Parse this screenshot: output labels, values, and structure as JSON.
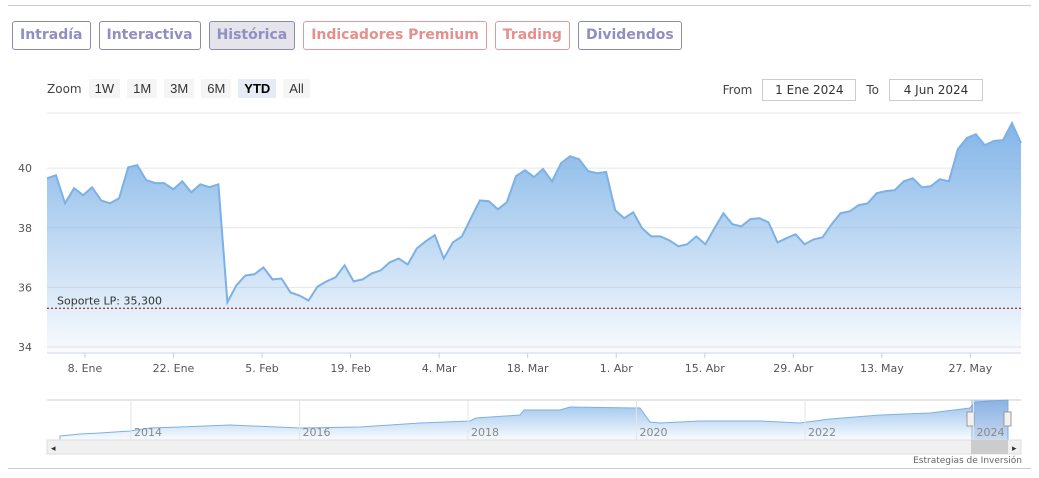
{
  "tabs": [
    {
      "label": "Intradía"
    },
    {
      "label": "Interactiva"
    },
    {
      "label": "Histórica",
      "active": true
    },
    {
      "label": "Indicadores Premium"
    },
    {
      "label": "Trading"
    },
    {
      "label": "Dividendos"
    }
  ],
  "zoom": {
    "label": "Zoom",
    "buttons": [
      "1W",
      "1M",
      "3M",
      "6M",
      "YTD",
      "All"
    ],
    "selected": "YTD"
  },
  "range": {
    "from_label": "From",
    "from_value": "1 Ene 2024",
    "to_label": "To",
    "to_value": "4 Jun 2024"
  },
  "credit": "Estrategias de Inversión",
  "colors": {
    "line": "#7cb1e6",
    "tab": "#8f8fc4",
    "tab_red": "#e58f8f",
    "support": "#8b0000"
  },
  "chart_data": {
    "type": "area",
    "ylim": [
      33.8,
      41.85
    ],
    "yticks": [
      34,
      36,
      38,
      40
    ],
    "x_day_range": [
      2,
      156
    ],
    "xticks": [
      {
        "label": "8. Ene",
        "day": 8
      },
      {
        "label": "22. Ene",
        "day": 22
      },
      {
        "label": "5. Feb",
        "day": 36
      },
      {
        "label": "19. Feb",
        "day": 50
      },
      {
        "label": "4. Mar",
        "day": 64
      },
      {
        "label": "18. Mar",
        "day": 78
      },
      {
        "label": "1. Abr",
        "day": 92
      },
      {
        "label": "15. Abr",
        "day": 106
      },
      {
        "label": "29. Abr",
        "day": 120
      },
      {
        "label": "13. May",
        "day": 134
      },
      {
        "label": "27. May",
        "day": 148
      }
    ],
    "values": [
      39.66,
      39.76,
      38.82,
      39.33,
      39.09,
      39.36,
      38.92,
      38.82,
      38.99,
      40.03,
      40.1,
      39.6,
      39.5,
      39.5,
      39.29,
      39.56,
      39.19,
      39.46,
      39.36,
      39.46,
      35.5,
      36.07,
      36.4,
      36.44,
      36.67,
      36.27,
      36.3,
      35.83,
      35.73,
      35.56,
      36.03,
      36.2,
      36.34,
      36.74,
      36.2,
      36.27,
      36.47,
      36.57,
      36.84,
      36.97,
      36.77,
      37.31,
      37.55,
      37.75,
      36.97,
      37.51,
      37.71,
      38.32,
      38.92,
      38.89,
      38.62,
      38.86,
      39.73,
      39.93,
      39.7,
      39.97,
      39.56,
      40.17,
      40.4,
      40.3,
      39.9,
      39.83,
      39.87,
      38.59,
      38.32,
      38.52,
      37.98,
      37.71,
      37.71,
      37.58,
      37.38,
      37.45,
      37.71,
      37.45,
      37.98,
      38.49,
      38.12,
      38.05,
      38.29,
      38.32,
      38.18,
      37.51,
      37.65,
      37.78,
      37.45,
      37.61,
      37.68,
      38.12,
      38.49,
      38.55,
      38.76,
      38.82,
      39.16,
      39.23,
      39.26,
      39.56,
      39.66,
      39.36,
      39.39,
      39.63,
      39.56,
      40.64,
      41.01,
      41.14,
      40.77,
      40.91,
      40.94,
      41.51,
      40.84
    ],
    "support": {
      "label": "Soporte LP: 35,300",
      "value": 35.3
    },
    "navigator": {
      "years": [
        "2014",
        "2016",
        "2018",
        "2020",
        "2022",
        "2024"
      ]
    }
  }
}
